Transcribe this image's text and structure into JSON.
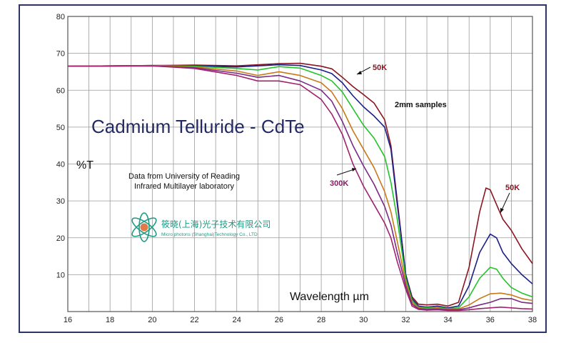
{
  "chart_data": {
    "type": "line",
    "title": "Cadmium Telluride - CdTe",
    "xlabel": "Wavelength µm",
    "ylabel": "%T",
    "xlim": [
      16,
      38
    ],
    "ylim": [
      0,
      80
    ],
    "x_ticks": [
      "16",
      "18",
      "20",
      "22",
      "24",
      "26",
      "28",
      "30",
      "32",
      "34",
      "36",
      "38"
    ],
    "y_ticks": [
      "10",
      "20",
      "30",
      "40",
      "50",
      "60",
      "70",
      "80"
    ],
    "grid": true,
    "notes": [
      "Data from University of Reading",
      "Infrared Multilayer laboratory"
    ],
    "annotations": [
      {
        "text": "50K",
        "color": "#8b1520"
      },
      {
        "text": "2mm samples",
        "color": "#111111"
      },
      {
        "text": "300K",
        "color": "#8b1a66"
      },
      {
        "text": "50K",
        "color": "#8b1520"
      }
    ],
    "series": [
      {
        "color": "#8b1520",
        "points": [
          [
            16,
            66.5
          ],
          [
            20,
            66.7
          ],
          [
            22,
            66.8
          ],
          [
            24,
            66.6
          ],
          [
            26,
            67.2
          ],
          [
            27,
            67.3
          ],
          [
            28,
            66.5
          ],
          [
            28.5,
            65.8
          ],
          [
            29,
            63.5
          ],
          [
            29.5,
            61
          ],
          [
            30,
            58.8
          ],
          [
            30.5,
            56.5
          ],
          [
            31,
            52
          ],
          [
            31.3,
            45
          ],
          [
            31.6,
            30
          ],
          [
            32,
            10
          ],
          [
            32.3,
            4
          ],
          [
            32.6,
            2
          ],
          [
            33,
            1.8
          ],
          [
            33.5,
            2
          ],
          [
            34,
            1.5
          ],
          [
            34.5,
            2.5
          ],
          [
            35,
            12
          ],
          [
            35.5,
            27
          ],
          [
            35.8,
            33.5
          ],
          [
            36,
            33
          ],
          [
            36.3,
            29
          ],
          [
            36.6,
            25
          ],
          [
            37,
            22
          ],
          [
            37.5,
            17
          ],
          [
            38,
            13
          ]
        ]
      },
      {
        "color": "#1c1f86",
        "points": [
          [
            16,
            66.5
          ],
          [
            20,
            66.7
          ],
          [
            22,
            66.6
          ],
          [
            24,
            66.3
          ],
          [
            26,
            66.9
          ],
          [
            27,
            66.7
          ],
          [
            28,
            65.5
          ],
          [
            28.5,
            64.5
          ],
          [
            29,
            62
          ],
          [
            29.5,
            58.5
          ],
          [
            30,
            55.5
          ],
          [
            30.5,
            53
          ],
          [
            31,
            50
          ],
          [
            31.3,
            44
          ],
          [
            31.6,
            29
          ],
          [
            32,
            10
          ],
          [
            32.3,
            3.5
          ],
          [
            32.6,
            1.5
          ],
          [
            33,
            1.2
          ],
          [
            33.5,
            1.5
          ],
          [
            34,
            1
          ],
          [
            34.5,
            1.5
          ],
          [
            35,
            7
          ],
          [
            35.5,
            16
          ],
          [
            36,
            21
          ],
          [
            36.3,
            20
          ],
          [
            36.6,
            16
          ],
          [
            37,
            13
          ],
          [
            37.5,
            10
          ],
          [
            38,
            7.5
          ]
        ]
      },
      {
        "color": "#22c42a",
        "points": [
          [
            16,
            66.5
          ],
          [
            20,
            66.7
          ],
          [
            22,
            66.5
          ],
          [
            24,
            65.9
          ],
          [
            25,
            65.5
          ],
          [
            26,
            66.4
          ],
          [
            27,
            66
          ],
          [
            28,
            64
          ],
          [
            28.5,
            62.5
          ],
          [
            29,
            59.5
          ],
          [
            29.5,
            55
          ],
          [
            30,
            50.5
          ],
          [
            30.5,
            47
          ],
          [
            31,
            42
          ],
          [
            31.3,
            35
          ],
          [
            31.6,
            25
          ],
          [
            32,
            9
          ],
          [
            32.3,
            3
          ],
          [
            32.6,
            1.2
          ],
          [
            33,
            1
          ],
          [
            33.5,
            1.2
          ],
          [
            34,
            0.8
          ],
          [
            34.5,
            1
          ],
          [
            35,
            4
          ],
          [
            35.5,
            9
          ],
          [
            36,
            12
          ],
          [
            36.3,
            11.5
          ],
          [
            36.6,
            9
          ],
          [
            37,
            6.5
          ],
          [
            37.5,
            5
          ],
          [
            38,
            4
          ]
        ]
      },
      {
        "color": "#c87a1a",
        "points": [
          [
            16,
            66.5
          ],
          [
            20,
            66.6
          ],
          [
            22,
            66.3
          ],
          [
            24,
            65.2
          ],
          [
            25,
            64
          ],
          [
            26,
            65
          ],
          [
            27,
            64
          ],
          [
            28,
            62
          ],
          [
            28.5,
            59.5
          ],
          [
            29,
            55
          ],
          [
            29.5,
            49
          ],
          [
            30,
            44
          ],
          [
            30.5,
            39
          ],
          [
            31,
            32.5
          ],
          [
            31.3,
            27
          ],
          [
            31.6,
            19
          ],
          [
            32,
            8
          ],
          [
            32.3,
            2.5
          ],
          [
            32.6,
            1
          ],
          [
            33,
            0.8
          ],
          [
            33.5,
            1
          ],
          [
            34,
            0.6
          ],
          [
            34.5,
            0.7
          ],
          [
            35,
            1.8
          ],
          [
            35.5,
            3.5
          ],
          [
            36,
            4.8
          ],
          [
            36.5,
            5
          ],
          [
            37,
            4.5
          ],
          [
            37.5,
            3.5
          ],
          [
            38,
            3
          ]
        ]
      },
      {
        "color": "#7a2a86",
        "points": [
          [
            16,
            66.5
          ],
          [
            20,
            66.6
          ],
          [
            22,
            66.1
          ],
          [
            24,
            64.6
          ],
          [
            25,
            63.5
          ],
          [
            26,
            64
          ],
          [
            27,
            62.5
          ],
          [
            28,
            60
          ],
          [
            28.5,
            57
          ],
          [
            29,
            51.5
          ],
          [
            29.5,
            45
          ],
          [
            30,
            39.5
          ],
          [
            30.5,
            34.5
          ],
          [
            31,
            28.5
          ],
          [
            31.3,
            23.5
          ],
          [
            31.6,
            16
          ],
          [
            32,
            7
          ],
          [
            32.3,
            2
          ],
          [
            32.6,
            0.8
          ],
          [
            33,
            0.6
          ],
          [
            33.5,
            0.7
          ],
          [
            34,
            0.5
          ],
          [
            34.5,
            0.5
          ],
          [
            35,
            1
          ],
          [
            35.5,
            1.8
          ],
          [
            36,
            2.5
          ],
          [
            36.5,
            3.5
          ],
          [
            37,
            3.5
          ],
          [
            37.5,
            2.5
          ],
          [
            38,
            2.2
          ]
        ]
      },
      {
        "color": "#a0226e",
        "points": [
          [
            16,
            66.5
          ],
          [
            20,
            66.6
          ],
          [
            22,
            65.9
          ],
          [
            24,
            64
          ],
          [
            25,
            62.5
          ],
          [
            26,
            62.5
          ],
          [
            27,
            61.5
          ],
          [
            28,
            57.5
          ],
          [
            28.5,
            53.5
          ],
          [
            29,
            48
          ],
          [
            29.5,
            40
          ],
          [
            30,
            34
          ],
          [
            30.5,
            29
          ],
          [
            31,
            24
          ],
          [
            31.3,
            20
          ],
          [
            31.6,
            13.5
          ],
          [
            32,
            6
          ],
          [
            32.3,
            1.5
          ],
          [
            32.6,
            0.6
          ],
          [
            33,
            0.4
          ],
          [
            33.5,
            0.5
          ],
          [
            34,
            0.3
          ],
          [
            34.5,
            0.3
          ],
          [
            35,
            0.5
          ],
          [
            35.5,
            0.8
          ],
          [
            36,
            1
          ],
          [
            36.5,
            1.2
          ],
          [
            37,
            1
          ],
          [
            37.5,
            0.8
          ],
          [
            38,
            0.7
          ]
        ]
      }
    ]
  },
  "logo": {
    "cn_text": "筱晓(上海)光子技术有限公司",
    "en_text": "Micro photons (Shanghai)Technology Co., LTD"
  }
}
